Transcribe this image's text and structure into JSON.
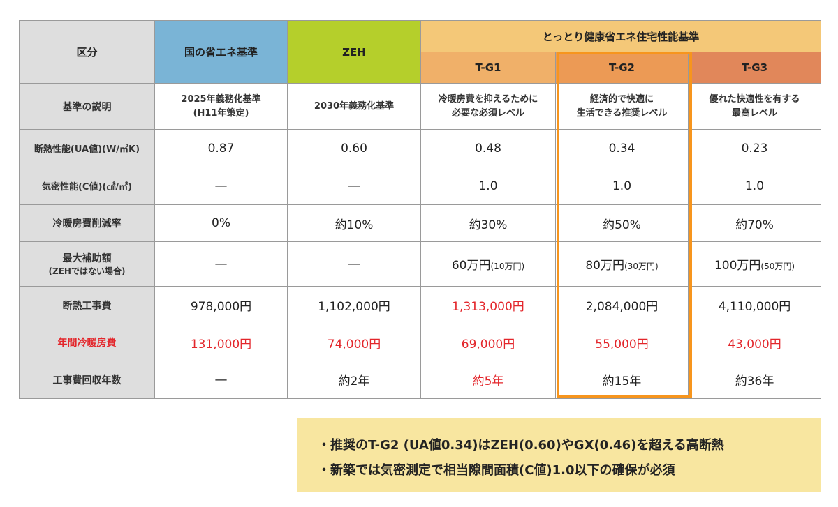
{
  "headers": {
    "kubun": "区分",
    "kuni": "国の省エネ基準",
    "zeh": "ZEH",
    "tottori": "とっとり健康省エネ住宅性能基準",
    "g1": "T-G1",
    "g2": "T-G2",
    "g3": "T-G3"
  },
  "rows": [
    {
      "label": "基準の説明",
      "cells": [
        "2025年義務化基準",
        "2030年義務化基準",
        "冷暖房費を抑えるために",
        "経済的で快適に",
        "優れた快適性を有する"
      ],
      "cells2": [
        "(H11年策定)",
        "",
        "必要な必須レベル",
        "生活できる推奨レベル",
        "最高レベル"
      ]
    },
    {
      "label": "断熱性能(UA値)(W/㎡K)",
      "cells": [
        "0.87",
        "0.60",
        "0.48",
        "0.34",
        "0.23"
      ]
    },
    {
      "label": "気密性能(C値)(㎠/㎡)",
      "cells": [
        "—",
        "—",
        "1.0",
        "1.0",
        "1.0"
      ]
    },
    {
      "label": "冷暖房費削減率",
      "cells": [
        "0%",
        "約10%",
        "約30%",
        "約50%",
        "約70%"
      ]
    },
    {
      "label": "最大補助額",
      "label_sub": "(ZEHではない場合)",
      "cells": [
        "—",
        "—",
        "60万円",
        "80万円",
        "100万円"
      ],
      "cells_small": [
        "",
        "",
        "(10万円)",
        "(30万円)",
        "(50万円)"
      ]
    },
    {
      "label": "断熱工事費",
      "cells": [
        "978,000円",
        "1,102,000円",
        "1,313,000円",
        "2,084,000円",
        "4,110,000円"
      ]
    },
    {
      "label": "年間冷暖房費",
      "cells": [
        "131,000円",
        "74,000円",
        "69,000円",
        "55,000円",
        "43,000円"
      ]
    },
    {
      "label": "工事費回収年数",
      "cells": [
        "—",
        "約2年",
        "約5年",
        "約15年",
        "約36年"
      ]
    }
  ],
  "notes": [
    "・推奨のT-G2 (UA値0.34)はZEH(0.60)やGX(0.46)を超える高断熱",
    "・新築では気密測定で相当隙間面積(C値)1.0以下の確保が必須"
  ],
  "colors": {
    "accent_red": "#e3262b",
    "highlight_orange": "#f7951d"
  }
}
